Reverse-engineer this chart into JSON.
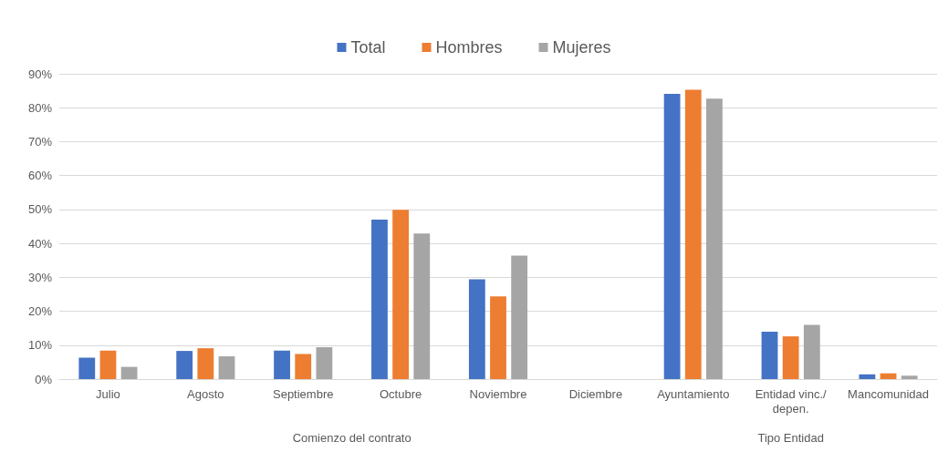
{
  "chart_data": {
    "type": "bar",
    "categories": [
      "Julio",
      "Agosto",
      "Septiembre",
      "Octubre",
      "Noviembre",
      "Diciembre",
      "Ayuntamiento",
      "Entidad vinc./depen.",
      "Mancomunidad"
    ],
    "series": [
      {
        "name": "Total",
        "color": "#4472c4",
        "values": [
          6.3,
          8.3,
          8.4,
          47.0,
          29.4,
          0,
          84.1,
          14.0,
          1.4
        ]
      },
      {
        "name": "Hombres",
        "color": "#ed7d31",
        "values": [
          8.4,
          9.1,
          7.4,
          49.9,
          24.4,
          0,
          85.3,
          12.6,
          1.7
        ]
      },
      {
        "name": "Mujeres",
        "color": "#a5a5a5",
        "values": [
          3.6,
          6.7,
          9.4,
          42.9,
          36.4,
          0,
          82.7,
          16.0,
          1.0
        ]
      }
    ],
    "ylim": [
      0,
      90
    ],
    "yticks": [
      {
        "value": 0,
        "label": "0%"
      },
      {
        "value": 10,
        "label": "10%"
      },
      {
        "value": 20,
        "label": "20%"
      },
      {
        "value": 30,
        "label": "30%"
      },
      {
        "value": 40,
        "label": "40%"
      },
      {
        "value": 50,
        "label": "50%"
      },
      {
        "value": 60,
        "label": "60%"
      },
      {
        "value": 70,
        "label": "70%"
      },
      {
        "value": 80,
        "label": "80%"
      },
      {
        "value": 90,
        "label": "90%"
      }
    ],
    "annotations": [
      "Comienzo del contrato",
      "Tipo Entidad"
    ],
    "grid": "y",
    "legend": "top"
  }
}
